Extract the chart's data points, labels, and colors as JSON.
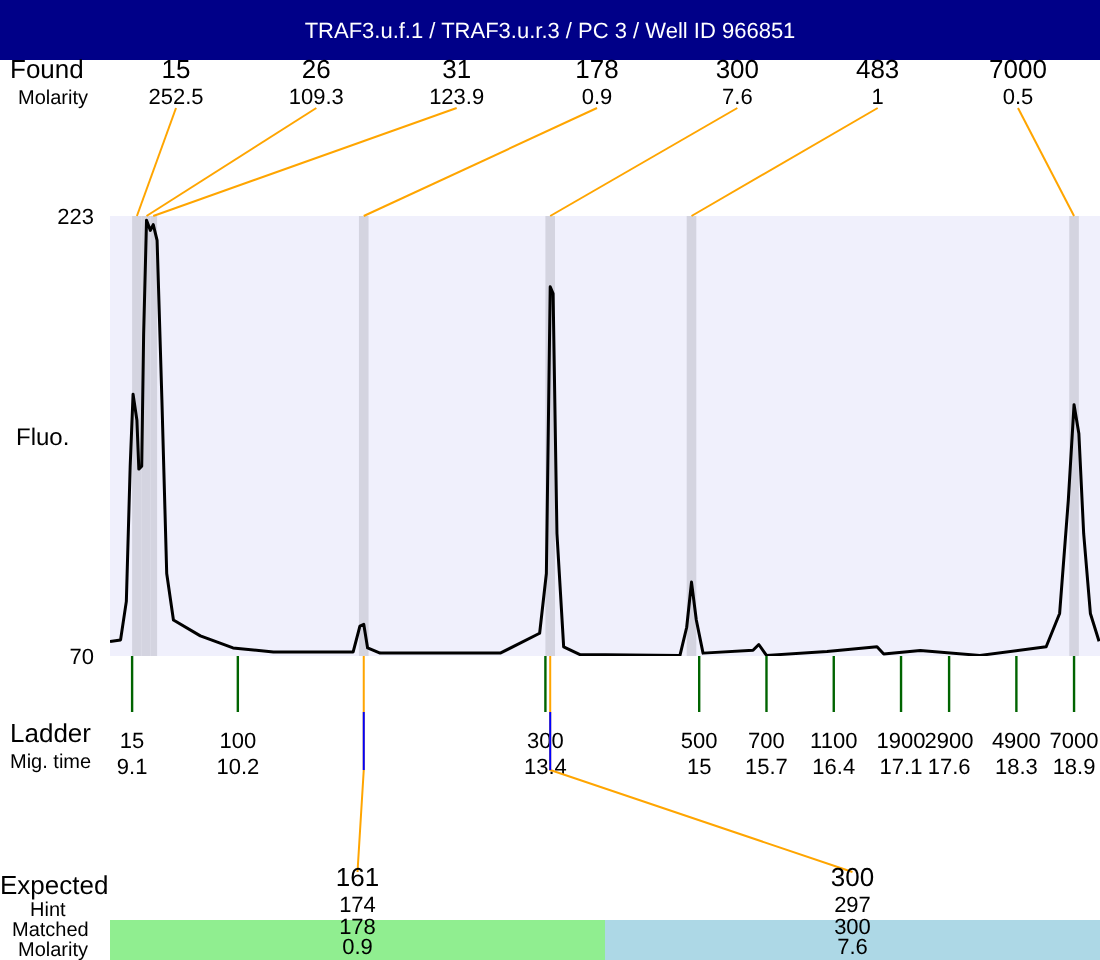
{
  "chart_data": {
    "type": "line",
    "title": "TRAF3.u.f.1 / TRAF3.u.r.3 / PC 3 / Well ID 966851",
    "xlabel": "Ladder",
    "ylabel": "Fluo.",
    "xlim": [
      8.87,
      19.17
    ],
    "ylim": [
      70,
      223
    ],
    "yticks": [
      70,
      223
    ],
    "xticks": [
      9.1,
      10.2,
      13.4,
      15,
      15.7,
      16.4,
      17.1,
      17.6,
      18.3,
      18.9
    ],
    "marker": "none",
    "series": [
      {
        "color": "#000000",
        "x": [
          8.87,
          8.98,
          9.04,
          9.08,
          9.11,
          9.15,
          9.17,
          9.2,
          9.22,
          9.25,
          9.29,
          9.32,
          9.36,
          9.41,
          9.46,
          9.53,
          9.81,
          10.15,
          10.57,
          11.4,
          11.47,
          11.51,
          11.55,
          11.68,
          12.93,
          13.34,
          13.41,
          13.45,
          13.48,
          13.52,
          13.59,
          13.76,
          14.8,
          14.87,
          14.92,
          14.97,
          15.04,
          15.56,
          15.62,
          15.7,
          16.33,
          16.85,
          16.92,
          17.3,
          17.92,
          18.61,
          18.75,
          18.84,
          18.9,
          18.95,
          19.0,
          19.07,
          19.16
        ],
        "values": [
          75,
          75.6,
          89,
          136,
          161,
          152,
          135,
          136,
          182,
          221.5,
          218,
          220,
          214.5,
          159,
          98.7,
          82.5,
          77,
          72.8,
          71.4,
          71.4,
          80.4,
          81,
          72.8,
          71,
          71,
          77.9,
          98.7,
          198.4,
          196,
          112.6,
          73.2,
          70.5,
          70.2,
          80,
          95.7,
          82.5,
          71,
          72,
          74,
          70.2,
          71.6,
          73.2,
          70.7,
          71.9,
          70.2,
          73.2,
          84.8,
          124,
          157.4,
          147.4,
          112.6,
          84.8,
          75.1
        ]
      }
    ],
    "bands": [
      {
        "axis": "x",
        "from": 9.1,
        "to": 9.2,
        "color": "#d4d4e0"
      },
      {
        "axis": "x",
        "from": 9.2,
        "to": 9.29,
        "color": "#d4d4e0"
      },
      {
        "axis": "x",
        "from": 9.29,
        "to": 9.36,
        "color": "#d4d4e0"
      },
      {
        "axis": "x",
        "from": 11.46,
        "to": 11.56,
        "color": "#d4d4e0"
      },
      {
        "axis": "x",
        "from": 13.4,
        "to": 13.5,
        "color": "#d4d4e0"
      },
      {
        "axis": "x",
        "from": 14.87,
        "to": 14.97,
        "color": "#d4d4e0"
      },
      {
        "axis": "x",
        "from": 18.85,
        "to": 18.95,
        "color": "#d4d4e0"
      }
    ],
    "annotations": [
      "Found",
      "Molarity",
      "Mig. time",
      "Expected",
      "Hint",
      "Matched",
      "Molarity",
      "174",
      "178",
      "0.9",
      "297",
      "300",
      "7.6",
      "15",
      "100",
      "300",
      "500",
      "700",
      "1100",
      "1900",
      "2900",
      "4900",
      "7000",
      {
        "text": "15",
        "x": 9.15,
        "y": 223
      },
      {
        "text": "252.5",
        "x": 9.15,
        "y": 223
      },
      {
        "text": "26",
        "x": 9.25,
        "y": 223
      },
      {
        "text": "109.3",
        "x": 9.25,
        "y": 223
      },
      {
        "text": "31",
        "x": 9.32,
        "y": 223
      },
      {
        "text": "123.9",
        "x": 9.32,
        "y": 223
      },
      {
        "text": "178",
        "x": 11.51,
        "y": 223
      },
      {
        "text": "0.9",
        "x": 11.51,
        "y": 223
      },
      {
        "text": "300",
        "x": 13.45,
        "y": 223
      },
      {
        "text": "7.6",
        "x": 13.45,
        "y": 223
      },
      {
        "text": "483",
        "x": 14.92,
        "y": 223
      },
      {
        "text": "1",
        "x": 14.92,
        "y": 223
      },
      {
        "text": "7000",
        "x": 18.9,
        "y": 223
      },
      {
        "text": "0.5",
        "x": 18.9,
        "y": 223
      },
      {
        "text": "161",
        "x": 11.51,
        "y": 70
      },
      {
        "text": "300",
        "x": 13.45,
        "y": 70
      }
    ]
  }
}
